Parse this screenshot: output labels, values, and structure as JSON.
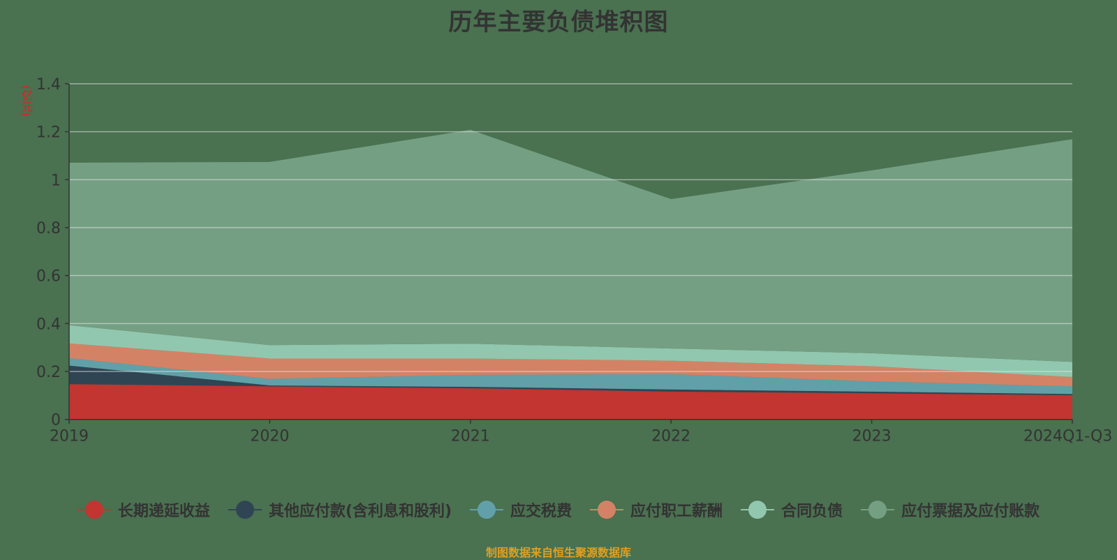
{
  "chart_data": {
    "type": "area",
    "stacked": true,
    "title": "历年主要负债堆积图",
    "ylabel": "(亿元)",
    "xlabel": "",
    "categories": [
      "2019",
      "2020",
      "2021",
      "2022",
      "2023",
      "2024Q1-Q3"
    ],
    "ylim": [
      0,
      1.4
    ],
    "yticks": [
      0,
      0.2,
      0.4,
      0.6,
      0.8,
      1,
      1.2,
      1.4
    ],
    "grid": true,
    "legend_position": "bottom",
    "series": [
      {
        "name": "长期递延收益",
        "color": "#c23531",
        "values": [
          0.147,
          0.138,
          0.13,
          0.116,
          0.109,
          0.101
        ]
      },
      {
        "name": "其他应付款(含利息和股利)",
        "color": "#2f4554",
        "values": [
          0.078,
          0.004,
          0.006,
          0.009,
          0.007,
          0.005
        ]
      },
      {
        "name": "应交税费",
        "color": "#61a0a8",
        "values": [
          0.031,
          0.027,
          0.05,
          0.064,
          0.043,
          0.032
        ]
      },
      {
        "name": "应付职工薪酬",
        "color": "#d48265",
        "values": [
          0.061,
          0.085,
          0.068,
          0.056,
          0.063,
          0.039
        ]
      },
      {
        "name": "合同负债",
        "color": "#91c7ae",
        "values": [
          0.076,
          0.056,
          0.062,
          0.051,
          0.054,
          0.063
        ]
      },
      {
        "name": "应付票据及应付账款",
        "color": "#749f83",
        "values": [
          0.678,
          0.764,
          0.892,
          0.623,
          0.763,
          0.929
        ]
      }
    ]
  },
  "header": {
    "title": "历年主要负债堆积图"
  },
  "axis": {
    "unit_label": "(亿元)"
  },
  "footer": {
    "source_text": "制图数据来自恒生聚源数据库"
  },
  "colors": {
    "background": "#4a7150",
    "axis_text": "#333333",
    "unit": "#e02020",
    "footer": "#e0a020",
    "grid": "#e6e6e6"
  }
}
